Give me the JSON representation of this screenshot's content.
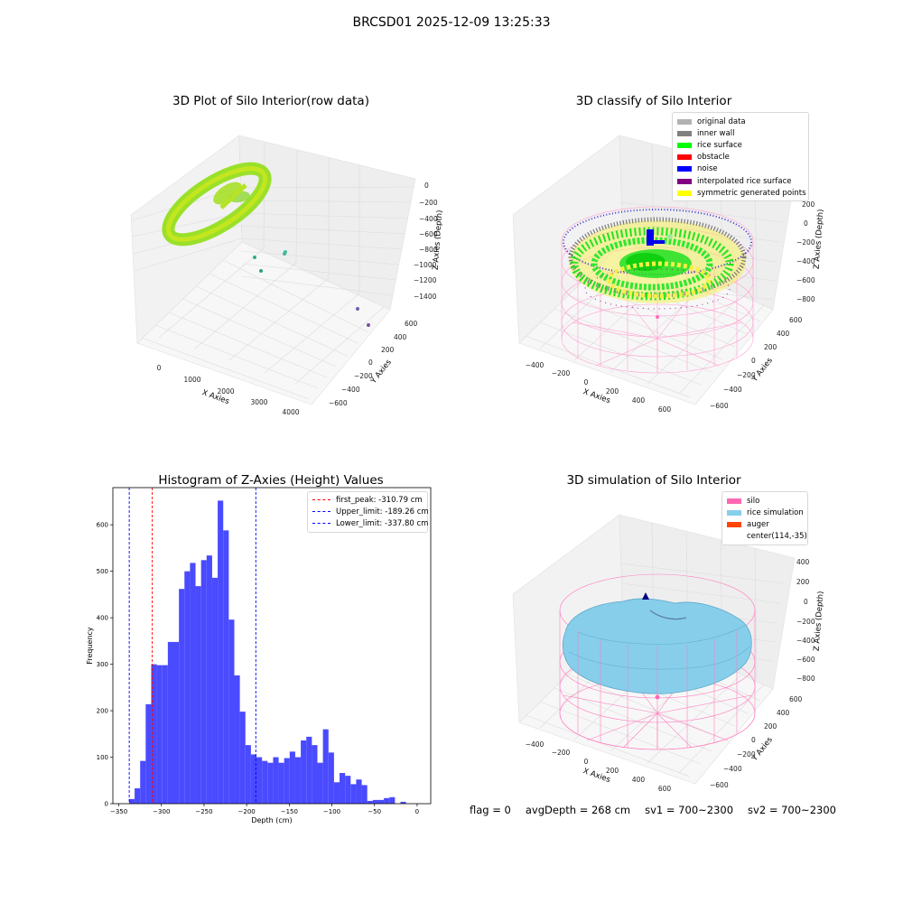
{
  "figure": {
    "suptitle": "BRCSD01 2025-12-09 13:25:33",
    "footer": {
      "flag": "flag = 0",
      "avg_depth": "avgDepth = 268 cm",
      "sv1": "sv1 = 700~2300",
      "sv2": "sv2 = 700~2300"
    }
  },
  "colors": {
    "hist_bar": "#4a4aff",
    "first_peak_line": "#ff0000",
    "limit_line": "#0000ff",
    "original_data": "#b2b2b2",
    "inner_wall": "#808080",
    "rice_surface": "#00ff00",
    "obstacle": "#ff0000",
    "noise": "#0000ff",
    "interpolated_rice_surface": "#800080",
    "symmetric_generated_points": "#ffff00",
    "silo": "#ff69b4",
    "rice_simulation": "#87ceeb",
    "auger": "#ff4500"
  },
  "panels": {
    "raw": {
      "title": "3D Plot of Silo Interior(row data)",
      "x_label": "X Axies",
      "y_label": "Y Axies",
      "z_label": "Z Axies (Depth)",
      "x_ticks": [
        "0",
        "1000",
        "2000",
        "3000",
        "4000"
      ],
      "y_ticks": [
        "600",
        "400",
        "200",
        "0",
        "−200",
        "−400",
        "−600"
      ],
      "z_ticks": [
        "0",
        "−200",
        "−400",
        "−600",
        "−800",
        "−1000",
        "−1200",
        "−1400"
      ]
    },
    "classify": {
      "title": "3D classify of Silo Interior",
      "x_label": "X Axies",
      "y_label": "Y Axies",
      "z_label": "Z Axies (Depth)",
      "x_ticks": [
        "−400",
        "−200",
        "0",
        "200",
        "400",
        "600"
      ],
      "y_ticks": [
        "600",
        "400",
        "200",
        "0",
        "−200",
        "−400",
        "−600"
      ],
      "z_ticks": [
        "200",
        "0",
        "−200",
        "−400",
        "−600",
        "−800"
      ],
      "legend": [
        {
          "label": "original data",
          "color_key": "original_data"
        },
        {
          "label": "inner wall",
          "color_key": "inner_wall"
        },
        {
          "label": "rice surface",
          "color_key": "rice_surface"
        },
        {
          "label": "obstacle",
          "color_key": "obstacle"
        },
        {
          "label": "noise",
          "color_key": "noise"
        },
        {
          "label": "interpolated rice surface",
          "color_key": "interpolated_rice_surface"
        },
        {
          "label": "symmetric generated points",
          "color_key": "symmetric_generated_points"
        }
      ]
    },
    "simulation": {
      "title": "3D simulation of Silo Interior",
      "x_label": "X Axies",
      "y_label": "Y Axies",
      "z_label": "Z Axies (Depth)",
      "x_ticks": [
        "−400",
        "−200",
        "0",
        "200",
        "400",
        "600"
      ],
      "y_ticks": [
        "600",
        "400",
        "200",
        "0",
        "−200",
        "−400",
        "−600"
      ],
      "z_ticks": [
        "400",
        "200",
        "0",
        "−200",
        "−400",
        "−600",
        "−800"
      ],
      "legend": [
        {
          "label": "silo",
          "color_key": "silo"
        },
        {
          "label": "rice simulation",
          "color_key": "rice_simulation"
        },
        {
          "label": "auger",
          "color_key": "auger"
        },
        {
          "label": "center(114,-35)",
          "color_key": ""
        }
      ]
    }
  },
  "chart_data": [
    {
      "type": "bar",
      "title": "Histogram of Z-Axies (Height) Values",
      "xlabel": "Depth (cm)",
      "ylabel": "Frequency",
      "xlim": [
        -357,
        16
      ],
      "ylim": [
        0,
        680
      ],
      "x_ticks": [
        -350,
        -300,
        -250,
        -200,
        -150,
        -100,
        -50,
        0
      ],
      "x_tick_labels": [
        "−350",
        "−300",
        "−250",
        "−200",
        "−150",
        "−100",
        "−50",
        "0"
      ],
      "y_ticks": [
        0,
        100,
        200,
        300,
        400,
        500,
        600
      ],
      "bin_start": -338,
      "bin_width": 6.5,
      "values": [
        10,
        33,
        92,
        214,
        300,
        298,
        298,
        348,
        348,
        462,
        500,
        518,
        468,
        524,
        534,
        486,
        652,
        588,
        396,
        276,
        198,
        126,
        106,
        100,
        92,
        88,
        100,
        88,
        98,
        112,
        100,
        136,
        144,
        126,
        88,
        160,
        110,
        46,
        66,
        60,
        42,
        52,
        40,
        6,
        8,
        8,
        12,
        14,
        0,
        4
      ],
      "vlines": [
        {
          "name": "first_peak",
          "x": -310.79,
          "label": "first_peak: -310.79 cm",
          "color_key": "first_peak_line"
        },
        {
          "name": "Upper_limit",
          "x": -189.26,
          "label": "Upper_limit: -189.26 cm",
          "color_key": "limit_line"
        },
        {
          "name": "Lower_limit",
          "x": -337.8,
          "label": "Lower_limit: -337.80 cm",
          "color_key": "limit_line"
        }
      ]
    }
  ]
}
